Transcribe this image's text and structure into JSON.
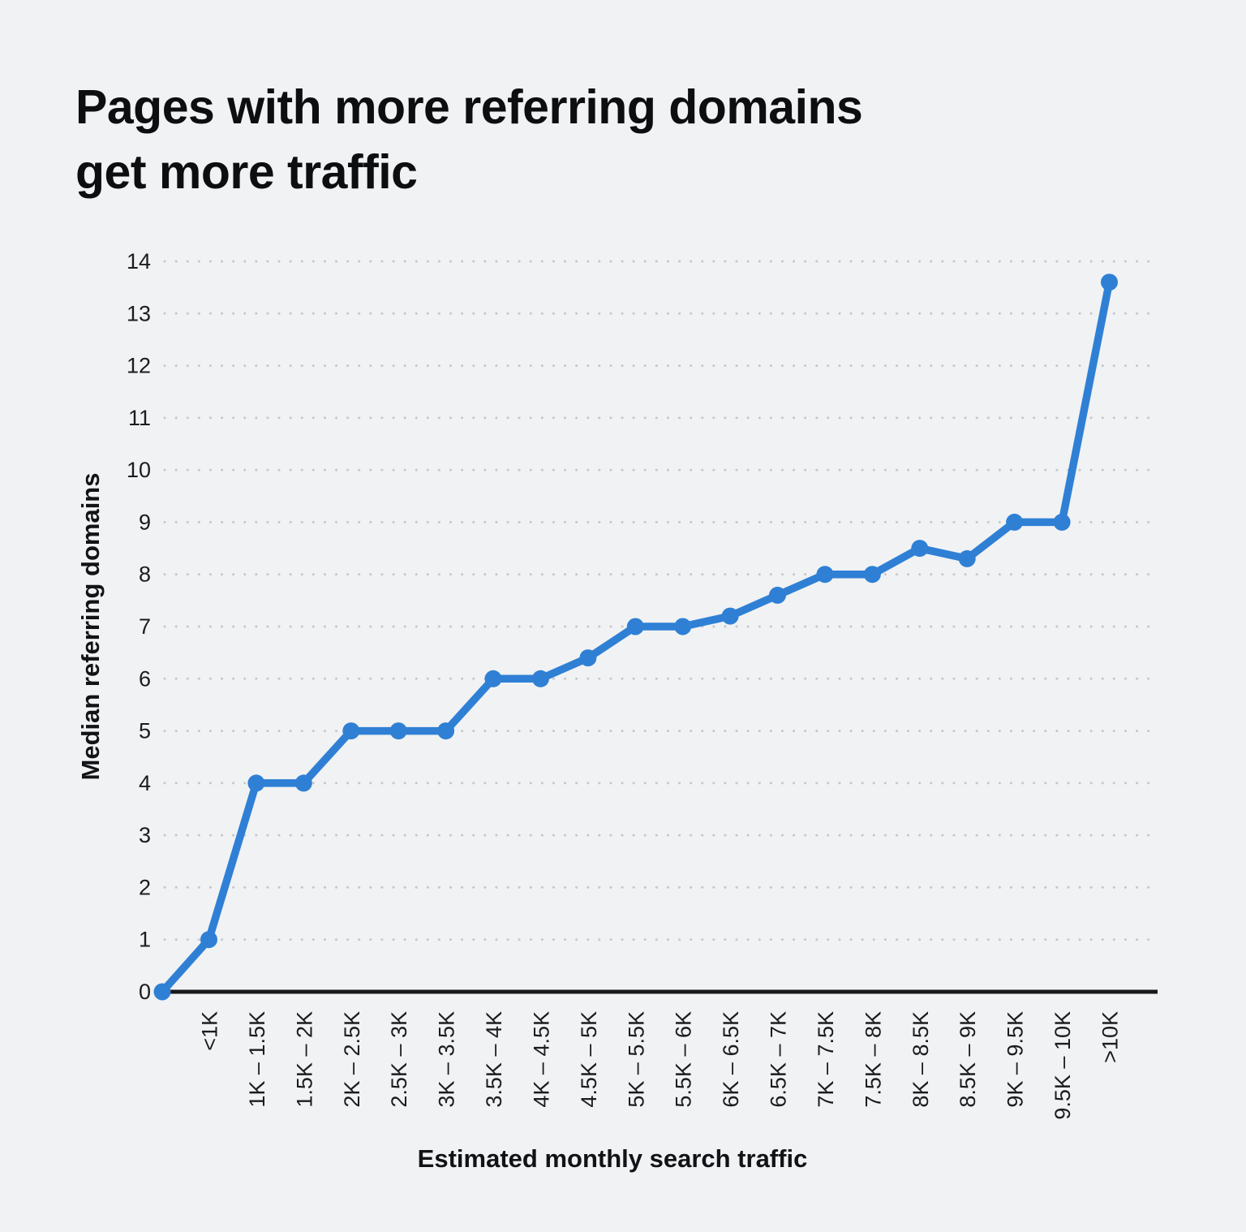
{
  "page": {
    "background_color": "#f1f2f4"
  },
  "title": {
    "line1": "Pages with more referring domains",
    "line2": "get more traffic",
    "full": "Pages with more referring domains get more traffic"
  },
  "chart_data": {
    "type": "line",
    "title": "Pages with more referring domains get more traffic",
    "xlabel": "Estimated monthly search traffic",
    "ylabel": "Median referring domains",
    "ylim": [
      0,
      14
    ],
    "y_ticks": [
      0,
      1,
      2,
      3,
      4,
      5,
      6,
      7,
      8,
      9,
      10,
      11,
      12,
      13,
      14
    ],
    "grid": "horizontal-dotted",
    "legend_position": "none",
    "starts_at_origin": true,
    "origin_value": 0,
    "categories": [
      "<1K",
      "1K – 1.5K",
      "1.5K – 2K",
      "2K – 2.5K",
      "2.5K – 3K",
      "3K – 3.5K",
      "3.5K – 4K",
      "4K – 4.5K",
      "4.5K – 5K",
      "5K – 5.5K",
      "5.5K – 6K",
      "6K – 6.5K",
      "6.5K – 7K",
      "7K – 7.5K",
      "7.5K – 8K",
      "8K – 8.5K",
      "8.5K – 9K",
      "9K – 9.5K",
      "9.5K – 10K",
      ">10K"
    ],
    "series": [
      {
        "name": "Median referring domains",
        "values": [
          1,
          4,
          4,
          5,
          5,
          5,
          6,
          6,
          6.4,
          7,
          7,
          7.2,
          7.6,
          8,
          8,
          8.5,
          8.3,
          9,
          9,
          13.6
        ]
      }
    ],
    "colors": {
      "line": "#2f80d5",
      "point": "#2f80d5",
      "grid_dots": "#c6c8cc",
      "axis_line": "#18191b",
      "tick_text": "#1b1c1e",
      "title_text": "#0d0e10"
    }
  }
}
